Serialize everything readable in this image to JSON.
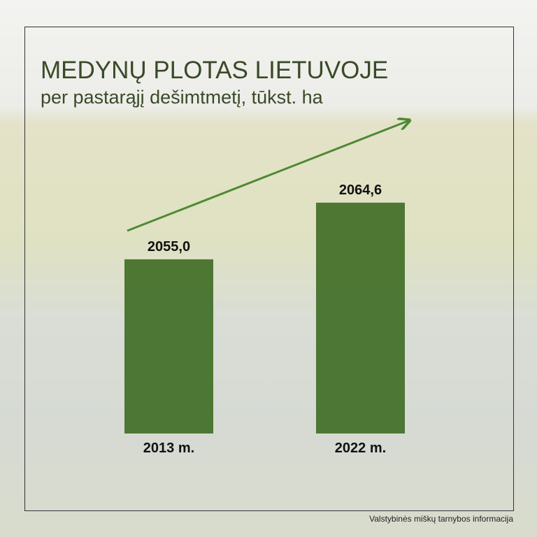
{
  "chart_data": {
    "type": "bar",
    "title": "MEDYNŲ PLOTAS LIETUVOJE",
    "subtitle": "per pastarąjį dešimtmetį, tūkst. ha",
    "categories": [
      "2013 m.",
      "2022 m."
    ],
    "values": [
      2055.0,
      2064.6
    ],
    "value_labels": [
      "2055,0",
      "2064,6"
    ],
    "color": "#3d6b22",
    "ylim": [
      2025.5,
      2066
    ],
    "source": "Valstybinės miškų tarnybos informacija"
  }
}
